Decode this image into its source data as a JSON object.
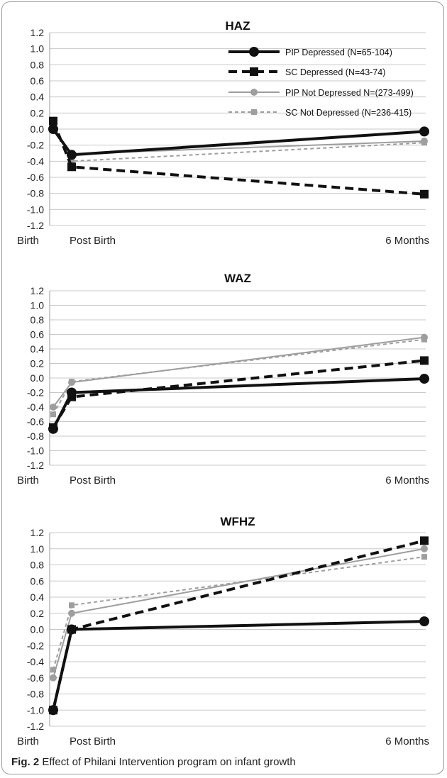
{
  "caption": {
    "label": "Fig. 2",
    "text": "Effect of Philani Intervention program on infant growth"
  },
  "chart_data": [
    {
      "type": "line",
      "title": "HAZ",
      "x": [
        "Birth",
        "Post Birth",
        "6 Months"
      ],
      "ylim": [
        -1.2,
        1.2
      ],
      "yticks": [
        "1.2",
        "1.0",
        "0.8",
        "0.6",
        "0.4",
        "0.2",
        "0.0",
        "-0.2",
        "-0.4",
        "-0.6",
        "-0.8",
        "-1.0",
        "-1.2"
      ],
      "grid": true,
      "legend": "top-right",
      "series": [
        {
          "name": "PIP Depressed (N=65-104)",
          "values": [
            0.0,
            -0.32,
            -0.03
          ],
          "color": "#111111",
          "style": "solid-thick",
          "marker": "circle"
        },
        {
          "name": "SC Depressed (N=43-74)",
          "values": [
            0.1,
            -0.47,
            -0.81
          ],
          "color": "#111111",
          "style": "dashed-thick",
          "marker": "square"
        },
        {
          "name": "PIP Not Depressed N=(273-499)",
          "values": [
            -0.01,
            -0.31,
            -0.15
          ],
          "color": "#9e9e9e",
          "style": "solid-thin",
          "marker": "circle"
        },
        {
          "name": "SC Not Depressed (N=236-415)",
          "values": [
            0.07,
            -0.4,
            -0.17
          ],
          "color": "#9e9e9e",
          "style": "dashed-thin",
          "marker": "square"
        }
      ]
    },
    {
      "type": "line",
      "title": "WAZ",
      "x": [
        "Birth",
        "Post Birth",
        "6 Months"
      ],
      "ylim": [
        -1.2,
        1.2
      ],
      "yticks": [
        "1.2",
        "1.0",
        "0.8",
        "0.6",
        "0.4",
        "0.2",
        "0.0",
        "-0.2",
        "-0.4",
        "-0.6",
        "-0.8",
        "-1.0",
        "-1.2"
      ],
      "grid": true,
      "series": [
        {
          "name": "PIP Depressed (N=65-104)",
          "values": [
            -0.7,
            -0.2,
            -0.01
          ],
          "color": "#111111",
          "style": "solid-thick",
          "marker": "circle"
        },
        {
          "name": "SC Depressed (N=43-74)",
          "values": [
            -0.68,
            -0.26,
            0.24
          ],
          "color": "#111111",
          "style": "dashed-thick",
          "marker": "square"
        },
        {
          "name": "PIP Not Depressed N=(273-499)",
          "values": [
            -0.4,
            -0.06,
            0.56
          ],
          "color": "#9e9e9e",
          "style": "solid-thin",
          "marker": "circle"
        },
        {
          "name": "SC Not Depressed (N=236-415)",
          "values": [
            -0.5,
            -0.05,
            0.53
          ],
          "color": "#9e9e9e",
          "style": "dashed-thin",
          "marker": "square"
        }
      ]
    },
    {
      "type": "line",
      "title": "WFHZ",
      "x": [
        "Birth",
        "Post Birth",
        "6 Months"
      ],
      "ylim": [
        -1.2,
        1.2
      ],
      "yticks": [
        "1.2",
        "1.0",
        "0.8",
        "0.6",
        "0.4",
        "0.2",
        "0.0",
        "-0.2",
        "-0.4",
        "-0.6",
        "-0.8",
        "-1.0",
        "-1.2"
      ],
      "grid": true,
      "series": [
        {
          "name": "PIP Depressed (N=65-104)",
          "values": [
            -1.0,
            0.0,
            0.1
          ],
          "color": "#111111",
          "style": "solid-thick",
          "marker": "circle"
        },
        {
          "name": "SC Depressed (N=43-74)",
          "values": [
            -1.0,
            0.0,
            1.1
          ],
          "color": "#111111",
          "style": "dashed-thick",
          "marker": "square"
        },
        {
          "name": "PIP Not Depressed N=(273-499)",
          "values": [
            -0.6,
            0.2,
            1.0
          ],
          "color": "#9e9e9e",
          "style": "solid-thin",
          "marker": "circle"
        },
        {
          "name": "SC Not Depressed (N=236-415)",
          "values": [
            -0.5,
            0.3,
            0.9
          ],
          "color": "#9e9e9e",
          "style": "dashed-thin",
          "marker": "square"
        }
      ]
    }
  ]
}
